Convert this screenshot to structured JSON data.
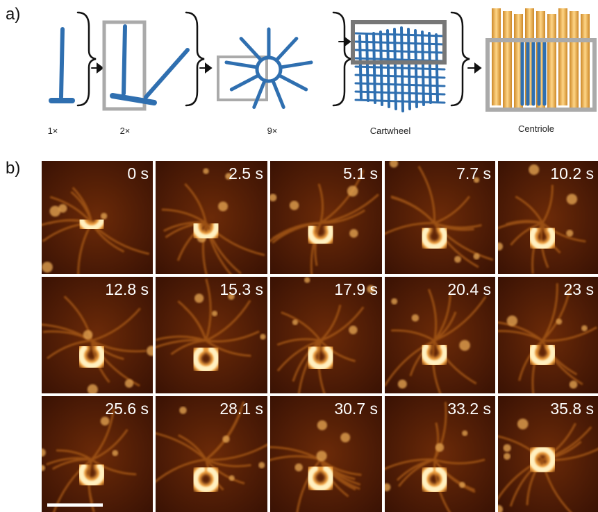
{
  "panel_a": {
    "label": "a)",
    "steps": [
      "1×",
      "2×",
      "9×",
      "Cartwheel",
      "Centriole"
    ]
  },
  "panel_b": {
    "label": "b)",
    "frames": [
      "0 s",
      "2.5 s",
      "5.1 s",
      "7.7 s",
      "10.2 s",
      "12.8 s",
      "15.3 s",
      "17.9 s",
      "20.4 s",
      "23 s",
      "25.6 s",
      "28.1 s",
      "30.7 s",
      "33.2 s",
      "35.8 s"
    ]
  }
}
